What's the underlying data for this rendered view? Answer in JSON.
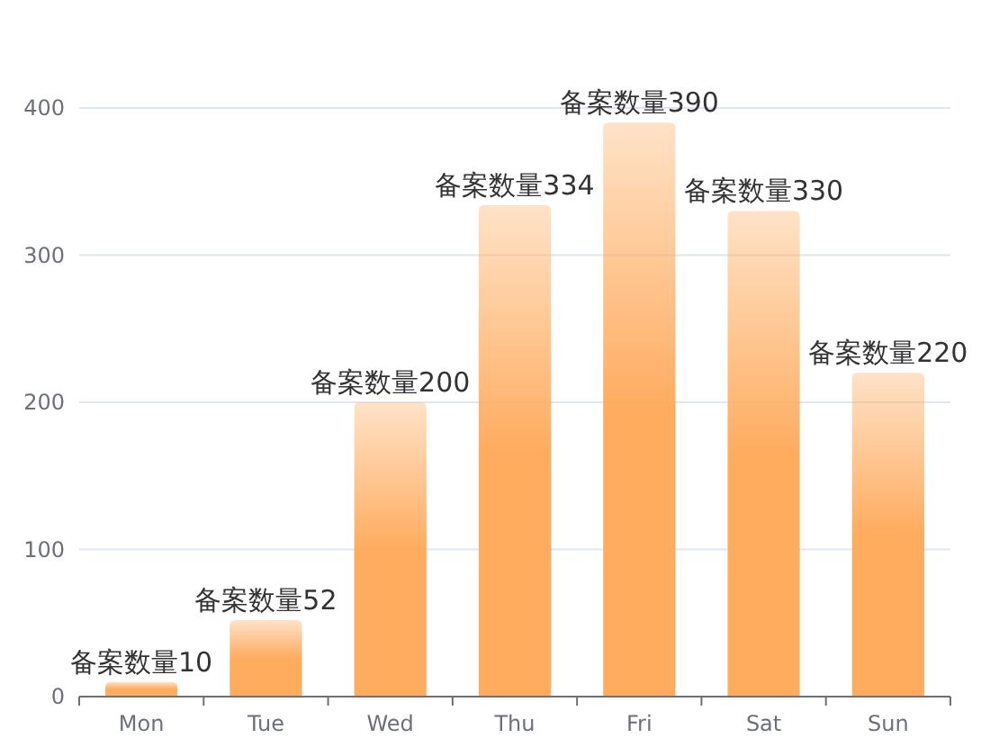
{
  "chart_data": {
    "type": "bar",
    "categories": [
      "Mon",
      "Tue",
      "Wed",
      "Thu",
      "Fri",
      "Sat",
      "Sun"
    ],
    "values": [
      10,
      52,
      200,
      334,
      390,
      330,
      220
    ],
    "value_labels": [
      "备案数量10",
      "备案数量52",
      "备案数量200",
      "备案数量334",
      "备案数量390",
      "备案数量330",
      "备案数量220"
    ],
    "color": "#ffac5f",
    "ylim": [
      0,
      400
    ],
    "yticks": [
      0,
      100,
      200,
      300,
      400
    ],
    "grid": "y"
  }
}
